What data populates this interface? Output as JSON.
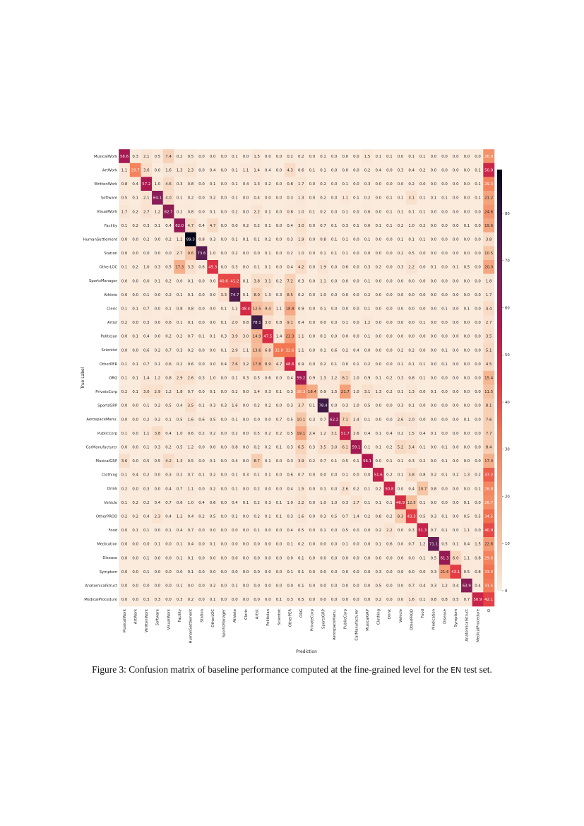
{
  "caption": {
    "prefix": "Figure 3: Confusion matrix of baseline performance computed at the fine-grained level for the ",
    "code": "EN",
    "suffix": " test set."
  },
  "chart_data": {
    "type": "heatmap",
    "title": "",
    "xlabel": "Prediction",
    "ylabel": "True Label",
    "colormap": "rocket_r",
    "color_range": [
      0,
      89.3
    ],
    "colorbar_ticks": [
      "0",
      "10",
      "20",
      "30",
      "40",
      "50",
      "60",
      "70",
      "80"
    ],
    "row_labels": [
      "MusicalWork",
      "ArtWork",
      "WrittenWork",
      "Software",
      "VisualWork",
      "Facility",
      "HumanSettlement",
      "Station",
      "OtherLOC",
      "SportsManager",
      "Athlete",
      "Cleric",
      "Artist",
      "Politician",
      "Scientist",
      "OtherPER",
      "ORG",
      "PrivateCorp",
      "SportsGRP",
      "AerospaceManu.",
      "PublicCorp",
      "CarManufacturer",
      "MusicalGRP",
      "Clothing",
      "Drink",
      "Vehicle",
      "OtherPROD",
      "Food",
      "Medication",
      "Disease",
      "Symptom",
      "AnatomicalStruct",
      "MedicalProcedure"
    ],
    "col_labels": [
      "MusicalWork",
      "ArtWork",
      "WrittenWork",
      "Software",
      "VisualWork",
      "Facility",
      "HumanSettlement",
      "Station",
      "OtherLOC",
      "SportsManager",
      "Athlete",
      "Cleric",
      "Artist",
      "Politician",
      "Scientist",
      "OtherPER",
      "ORG",
      "PrivateCorp",
      "SportsGRP",
      "AerospaceManu.",
      "PublicCorp",
      "CarManufacturer",
      "MusicalGRP",
      "Clothing",
      "Drink",
      "Vehicle",
      "OtherPROD",
      "Food",
      "Medication",
      "Disease",
      "Symptom",
      "AnatomicalStruct",
      "MedicalProcedure",
      "O"
    ],
    "values": [
      [
        "58.6",
        "0.3",
        "2.1",
        "0.5",
        "7.4",
        "0.2",
        "0.5",
        "0.0",
        "0.0",
        "0.0",
        "0.1",
        "0.0",
        "1.5",
        "0.0",
        "0.0",
        "0.2",
        "0.2",
        "0.0",
        "0.1",
        "0.0",
        "0.0",
        "0.0",
        "1.5",
        "0.1",
        "0.1",
        "0.0",
        "0.1",
        "0.1",
        "0.0",
        "0.0",
        "0.0",
        "0.0",
        "0.0",
        "26.0"
      ],
      [
        "1.1",
        "29.7",
        "3.6",
        "0.0",
        "1.6",
        "1.3",
        "2.3",
        "0.0",
        "0.4",
        "0.0",
        "0.1",
        "1.1",
        "1.4",
        "0.4",
        "0.0",
        "4.3",
        "0.6",
        "0.1",
        "0.1",
        "0.0",
        "0.0",
        "0.0",
        "0.2",
        "0.4",
        "0.0",
        "0.3",
        "0.4",
        "0.2",
        "0.0",
        "0.0",
        "0.0",
        "0.0",
        "0.1",
        "50.0"
      ],
      [
        "0.8",
        "0.4",
        "57.2",
        "1.0",
        "4.6",
        "0.3",
        "0.8",
        "0.0",
        "0.1",
        "0.0",
        "0.1",
        "0.4",
        "1.3",
        "0.2",
        "0.0",
        "0.8",
        "1.7",
        "0.0",
        "0.2",
        "0.0",
        "0.1",
        "0.0",
        "0.3",
        "0.0",
        "0.0",
        "0.0",
        "0.2",
        "0.0",
        "0.0",
        "0.0",
        "0.0",
        "0.0",
        "0.1",
        "29.3"
      ],
      [
        "0.5",
        "0.1",
        "2.1",
        "64.1",
        "4.0",
        "0.1",
        "0.2",
        "0.0",
        "0.2",
        "0.0",
        "0.1",
        "0.0",
        "0.4",
        "0.0",
        "0.0",
        "0.3",
        "1.3",
        "0.0",
        "0.2",
        "0.0",
        "1.1",
        "0.1",
        "0.2",
        "0.0",
        "0.1",
        "0.1",
        "3.1",
        "0.1",
        "0.1",
        "0.1",
        "0.0",
        "0.0",
        "0.1",
        "21.2"
      ],
      [
        "1.7",
        "0.2",
        "2.7",
        "1.2",
        "62.7",
        "0.2",
        "0.8",
        "0.0",
        "0.1",
        "0.0",
        "0.2",
        "0.0",
        "2.2",
        "0.1",
        "0.0",
        "0.8",
        "1.0",
        "0.1",
        "0.2",
        "0.0",
        "0.1",
        "0.0",
        "0.6",
        "0.0",
        "0.1",
        "0.1",
        "0.1",
        "0.1",
        "0.0",
        "0.0",
        "0.0",
        "0.0",
        "0.0",
        "24.6"
      ],
      [
        "0.1",
        "0.2",
        "0.3",
        "0.1",
        "0.4",
        "62.0",
        "4.7",
        "0.4",
        "4.7",
        "0.0",
        "0.0",
        "0.2",
        "0.2",
        "0.1",
        "0.0",
        "0.4",
        "3.0",
        "0.0",
        "0.7",
        "0.1",
        "0.3",
        "0.1",
        "0.6",
        "0.1",
        "0.1",
        "0.2",
        "1.0",
        "0.2",
        "0.0",
        "0.0",
        "0.0",
        "0.1",
        "0.0",
        "19.6"
      ],
      [
        "0.0",
        "0.0",
        "0.2",
        "0.0",
        "0.2",
        "1.2",
        "89.3",
        "0.8",
        "0.3",
        "0.0",
        "0.1",
        "0.1",
        "0.1",
        "0.2",
        "0.0",
        "0.3",
        "1.9",
        "0.0",
        "0.8",
        "0.1",
        "0.1",
        "0.0",
        "0.1",
        "0.0",
        "0.0",
        "0.1",
        "0.1",
        "0.1",
        "0.0",
        "0.0",
        "0.0",
        "0.0",
        "0.0",
        "3.8"
      ],
      [
        "0.0",
        "0.0",
        "0.0",
        "0.0",
        "0.0",
        "2.7",
        "9.6",
        "73.6",
        "1.0",
        "0.0",
        "0.2",
        "0.0",
        "0.0",
        "0.1",
        "0.0",
        "0.2",
        "1.0",
        "0.0",
        "0.1",
        "0.1",
        "0.1",
        "0.0",
        "0.0",
        "0.0",
        "0.0",
        "0.2",
        "0.5",
        "0.0",
        "0.0",
        "0.0",
        "0.0",
        "0.0",
        "0.0",
        "10.5"
      ],
      [
        "0.1",
        "0.2",
        "1.0",
        "0.3",
        "0.5",
        "17.3",
        "3.3",
        "0.6",
        "45.3",
        "0.0",
        "0.3",
        "0.0",
        "0.1",
        "0.1",
        "0.0",
        "0.4",
        "4.2",
        "0.0",
        "1.9",
        "0.0",
        "0.6",
        "0.0",
        "0.3",
        "0.2",
        "0.0",
        "0.3",
        "2.2",
        "0.0",
        "0.1",
        "0.0",
        "0.1",
        "0.5",
        "0.0",
        "20.0"
      ],
      [
        "0.0",
        "0.0",
        "0.0",
        "0.1",
        "0.2",
        "0.0",
        "0.1",
        "0.0",
        "0.0",
        "40.6",
        "41.2",
        "0.1",
        "3.8",
        "3.1",
        "0.2",
        "7.2",
        "0.3",
        "0.0",
        "1.1",
        "0.0",
        "0.0",
        "0.0",
        "0.1",
        "0.0",
        "0.0",
        "0.0",
        "0.0",
        "0.0",
        "0.0",
        "0.0",
        "0.0",
        "0.0",
        "0.0",
        "1.8"
      ],
      [
        "0.0",
        "0.0",
        "0.1",
        "0.0",
        "0.2",
        "0.1",
        "0.1",
        "0.0",
        "0.0",
        "3.3",
        "74.7",
        "0.1",
        "8.0",
        "1.3",
        "0.3",
        "8.5",
        "0.2",
        "0.0",
        "1.0",
        "0.0",
        "0.0",
        "0.0",
        "0.2",
        "0.0",
        "0.0",
        "0.0",
        "0.0",
        "0.0",
        "0.0",
        "0.0",
        "0.0",
        "0.0",
        "0.0",
        "1.7"
      ],
      [
        "0.1",
        "0.1",
        "0.7",
        "0.0",
        "0.1",
        "0.8",
        "0.8",
        "0.0",
        "0.0",
        "0.1",
        "1.2",
        "48.4",
        "12.5",
        "9.4",
        "1.1",
        "18.8",
        "0.9",
        "0.0",
        "0.1",
        "0.0",
        "0.0",
        "0.0",
        "0.1",
        "0.0",
        "0.0",
        "0.0",
        "0.0",
        "0.0",
        "0.0",
        "0.1",
        "0.0",
        "0.1",
        "0.0",
        "4.4"
      ],
      [
        "0.2",
        "0.0",
        "0.3",
        "0.0",
        "0.6",
        "0.1",
        "0.1",
        "0.0",
        "0.0",
        "0.1",
        "2.0",
        "0.8",
        "78.1",
        "3.0",
        "0.8",
        "9.1",
        "0.4",
        "0.0",
        "0.0",
        "0.0",
        "0.1",
        "0.0",
        "1.2",
        "0.0",
        "0.0",
        "0.0",
        "0.0",
        "0.1",
        "0.0",
        "0.0",
        "0.0",
        "0.0",
        "0.0",
        "2.7"
      ],
      [
        "0.0",
        "0.1",
        "0.4",
        "0.0",
        "0.2",
        "0.2",
        "0.7",
        "0.1",
        "0.1",
        "0.3",
        "3.9",
        "3.0",
        "14.9",
        "47.5",
        "1.4",
        "22.3",
        "1.1",
        "0.0",
        "0.1",
        "0.0",
        "0.0",
        "0.0",
        "0.1",
        "0.0",
        "0.0",
        "0.0",
        "0.0",
        "0.0",
        "0.0",
        "0.0",
        "0.0",
        "0.0",
        "0.0",
        "3.5"
      ],
      [
        "0.0",
        "0.0",
        "0.6",
        "0.2",
        "0.7",
        "0.3",
        "0.2",
        "0.0",
        "0.0",
        "0.1",
        "2.9",
        "1.1",
        "13.6",
        "6.8",
        "32.8",
        "32.6",
        "1.1",
        "0.0",
        "0.1",
        "0.6",
        "0.2",
        "0.4",
        "0.0",
        "0.0",
        "0.0",
        "0.2",
        "0.2",
        "0.0",
        "0.0",
        "0.1",
        "0.0",
        "0.0",
        "0.0",
        "5.1"
      ],
      [
        "0.1",
        "0.1",
        "0.7",
        "0.1",
        "0.6",
        "0.2",
        "0.6",
        "0.0",
        "0.0",
        "0.4",
        "7.6",
        "3.2",
        "17.8",
        "8.9",
        "4.7",
        "48.6",
        "0.9",
        "0.0",
        "0.2",
        "0.1",
        "0.0",
        "0.1",
        "0.2",
        "0.0",
        "0.0",
        "0.1",
        "0.1",
        "0.1",
        "0.0",
        "0.1",
        "0.0",
        "0.0",
        "0.0",
        "4.5"
      ],
      [
        "0.1",
        "0.1",
        "1.4",
        "1.2",
        "0.8",
        "2.9",
        "2.6",
        "0.3",
        "1.0",
        "0.0",
        "0.1",
        "0.3",
        "0.5",
        "0.6",
        "0.0",
        "0.4",
        "59.2",
        "0.9",
        "1.3",
        "1.2",
        "6.1",
        "1.0",
        "0.9",
        "0.1",
        "0.2",
        "0.3",
        "0.8",
        "0.1",
        "0.0",
        "0.0",
        "0.0",
        "0.0",
        "0.0",
        "15.4"
      ],
      [
        "0.2",
        "0.1",
        "3.0",
        "2.9",
        "1.2",
        "1.8",
        "0.7",
        "0.0",
        "0.1",
        "0.0",
        "0.2",
        "0.0",
        "1.4",
        "0.3",
        "0.1",
        "0.3",
        "26.3",
        "18.4",
        "0.9",
        "1.5",
        "21.7",
        "1.0",
        "3.1",
        "1.3",
        "0.2",
        "0.1",
        "1.3",
        "0.0",
        "0.1",
        "0.0",
        "0.0",
        "0.0",
        "0.0",
        "11.5"
      ],
      [
        "0.0",
        "0.0",
        "0.1",
        "0.2",
        "0.5",
        "0.4",
        "3.5",
        "0.1",
        "0.3",
        "0.3",
        "1.6",
        "0.0",
        "0.2",
        "0.2",
        "0.0",
        "0.3",
        "3.7",
        "0.1",
        "78.4",
        "0.0",
        "0.3",
        "1.0",
        "0.5",
        "0.0",
        "0.0",
        "0.3",
        "0.1",
        "0.0",
        "0.0",
        "0.0",
        "0.0",
        "0.0",
        "0.0",
        "8.1"
      ],
      [
        "0.0",
        "0.0",
        "0.2",
        "0.2",
        "0.1",
        "0.5",
        "1.6",
        "0.6",
        "0.5",
        "0.0",
        "0.1",
        "0.0",
        "0.0",
        "0.0",
        "0.7",
        "0.5",
        "10.1",
        "0.3",
        "0.7",
        "62.2",
        "7.1",
        "2.4",
        "0.1",
        "0.0",
        "0.0",
        "2.6",
        "2.0",
        "0.0",
        "0.0",
        "0.0",
        "0.0",
        "0.1",
        "0.0",
        "7.6"
      ],
      [
        "0.1",
        "0.0",
        "1.1",
        "3.8",
        "0.4",
        "1.0",
        "0.6",
        "0.2",
        "0.2",
        "0.0",
        "0.2",
        "0.0",
        "0.5",
        "0.2",
        "0.2",
        "0.5",
        "19.1",
        "2.4",
        "1.2",
        "3.1",
        "51.7",
        "2.6",
        "0.4",
        "0.1",
        "0.4",
        "0.2",
        "1.5",
        "0.4",
        "0.1",
        "0.0",
        "0.0",
        "0.0",
        "0.0",
        "7.7"
      ],
      [
        "0.0",
        "0.0",
        "0.1",
        "0.3",
        "0.2",
        "0.5",
        "1.2",
        "0.0",
        "0.0",
        "0.0",
        "0.8",
        "0.0",
        "0.2",
        "0.2",
        "0.1",
        "0.3",
        "6.5",
        "0.3",
        "3.5",
        "3.0",
        "6.1",
        "59.1",
        "0.1",
        "0.1",
        "0.2",
        "5.2",
        "3.4",
        "0.1",
        "0.0",
        "0.1",
        "0.0",
        "0.0",
        "0.0",
        "8.4"
      ],
      [
        "3.6",
        "0.0",
        "0.5",
        "0.5",
        "4.2",
        "1.3",
        "0.5",
        "0.0",
        "0.1",
        "0.0",
        "0.4",
        "0.0",
        "8.7",
        "0.1",
        "0.0",
        "0.3",
        "3.9",
        "0.2",
        "0.7",
        "0.1",
        "0.5",
        "0.1",
        "56.1",
        "0.0",
        "0.1",
        "0.1",
        "0.3",
        "0.2",
        "0.0",
        "0.1",
        "0.0",
        "0.0",
        "0.0",
        "17.4"
      ],
      [
        "0.1",
        "0.4",
        "0.2",
        "0.0",
        "0.3",
        "0.2",
        "0.7",
        "0.1",
        "0.2",
        "0.0",
        "0.1",
        "0.3",
        "0.1",
        "0.1",
        "0.0",
        "0.6",
        "0.7",
        "0.0",
        "0.0",
        "0.0",
        "0.1",
        "0.0",
        "0.0",
        "51.6",
        "0.2",
        "0.1",
        "3.8",
        "0.8",
        "0.2",
        "0.1",
        "0.2",
        "1.3",
        "0.2",
        "37.2"
      ],
      [
        "0.2",
        "0.0",
        "0.3",
        "0.0",
        "0.4",
        "0.7",
        "1.1",
        "0.0",
        "0.2",
        "0.0",
        "0.1",
        "0.0",
        "0.2",
        "0.0",
        "0.0",
        "0.4",
        "1.5",
        "0.0",
        "0.1",
        "0.0",
        "2.6",
        "0.2",
        "0.1",
        "0.2",
        "50.8",
        "0.0",
        "0.4",
        "10.7",
        "0.8",
        "0.0",
        "0.0",
        "0.0",
        "0.1",
        "28.8"
      ],
      [
        "0.1",
        "0.2",
        "0.2",
        "0.4",
        "0.7",
        "0.6",
        "1.0",
        "0.4",
        "0.6",
        "0.0",
        "0.4",
        "0.1",
        "0.2",
        "0.3",
        "0.1",
        "1.0",
        "2.2",
        "0.0",
        "1.0",
        "1.0",
        "0.3",
        "2.7",
        "0.1",
        "0.1",
        "0.1",
        "46.9",
        "12.5",
        "0.1",
        "0.0",
        "0.0",
        "0.0",
        "0.1",
        "0.0",
        "26.7"
      ],
      [
        "0.2",
        "0.2",
        "0.4",
        "2.3",
        "0.4",
        "1.2",
        "0.4",
        "0.2",
        "0.5",
        "0.0",
        "0.1",
        "0.0",
        "0.2",
        "0.1",
        "0.1",
        "0.3",
        "1.6",
        "0.0",
        "0.3",
        "0.5",
        "0.7",
        "1.4",
        "0.2",
        "0.8",
        "0.2",
        "8.3",
        "43.3",
        "0.5",
        "0.3",
        "0.1",
        "0.0",
        "0.5",
        "0.5",
        "34.5"
      ],
      [
        "0.0",
        "0.1",
        "0.1",
        "0.0",
        "0.1",
        "0.4",
        "0.7",
        "0.0",
        "0.0",
        "0.0",
        "0.0",
        "0.0",
        "0.1",
        "0.0",
        "0.0",
        "0.4",
        "0.5",
        "0.0",
        "0.1",
        "0.0",
        "0.5",
        "0.0",
        "0.0",
        "0.2",
        "2.2",
        "0.0",
        "0.3",
        "51.3",
        "0.7",
        "0.1",
        "0.0",
        "1.1",
        "0.0",
        "40.9"
      ],
      [
        "0.0",
        "0.0",
        "0.0",
        "0.1",
        "0.0",
        "0.1",
        "0.4",
        "0.0",
        "0.1",
        "0.0",
        "0.0",
        "0.0",
        "0.0",
        "0.0",
        "0.0",
        "0.1",
        "0.2",
        "0.0",
        "0.0",
        "0.0",
        "0.1",
        "0.0",
        "0.0",
        "0.1",
        "0.6",
        "0.0",
        "0.7",
        "1.2",
        "71.1",
        "0.5",
        "0.1",
        "0.4",
        "1.5",
        "22.6"
      ],
      [
        "0.0",
        "0.0",
        "0.1",
        "0.0",
        "0.0",
        "0.1",
        "0.1",
        "0.0",
        "0.0",
        "0.0",
        "0.0",
        "0.0",
        "0.0",
        "0.0",
        "0.0",
        "0.0",
        "0.1",
        "0.0",
        "0.0",
        "0.0",
        "0.0",
        "0.0",
        "0.0",
        "0.0",
        "0.0",
        "0.0",
        "0.0",
        "0.1",
        "0.5",
        "61.3",
        "6.0",
        "1.1",
        "0.8",
        "29.6"
      ],
      [
        "0.0",
        "0.0",
        "0.1",
        "0.0",
        "0.0",
        "0.0",
        "0.1",
        "0.0",
        "0.0",
        "0.0",
        "0.0",
        "0.0",
        "0.0",
        "0.0",
        "0.0",
        "0.1",
        "0.1",
        "0.0",
        "0.0",
        "0.0",
        "0.0",
        "0.0",
        "0.0",
        "0.3",
        "0.0",
        "0.0",
        "0.0",
        "0.0",
        "0.3",
        "21.6",
        "43.1",
        "0.5",
        "0.8",
        "33.4"
      ],
      [
        "0.0",
        "0.0",
        "0.0",
        "0.0",
        "0.0",
        "0.1",
        "0.0",
        "0.0",
        "0.2",
        "0.0",
        "0.1",
        "0.0",
        "0.0",
        "0.0",
        "0.0",
        "0.0",
        "0.1",
        "0.0",
        "0.0",
        "0.0",
        "0.0",
        "0.0",
        "0.0",
        "0.5",
        "0.0",
        "0.0",
        "0.7",
        "0.4",
        "0.3",
        "1.2",
        "0.4",
        "63.9",
        "0.4",
        "31.5"
      ],
      [
        "0.0",
        "0.0",
        "0.3",
        "0.3",
        "0.0",
        "0.3",
        "0.2",
        "0.0",
        "0.1",
        "0.0",
        "0.0",
        "0.0",
        "0.0",
        "0.0",
        "0.1",
        "0.3",
        "0.5",
        "0.0",
        "0.0",
        "0.0",
        "0.0",
        "0.0",
        "0.0",
        "0.2",
        "0.0",
        "0.0",
        "1.6",
        "0.1",
        "0.8",
        "0.8",
        "0.5",
        "0.7",
        "50.9",
        "42.1"
      ]
    ]
  }
}
